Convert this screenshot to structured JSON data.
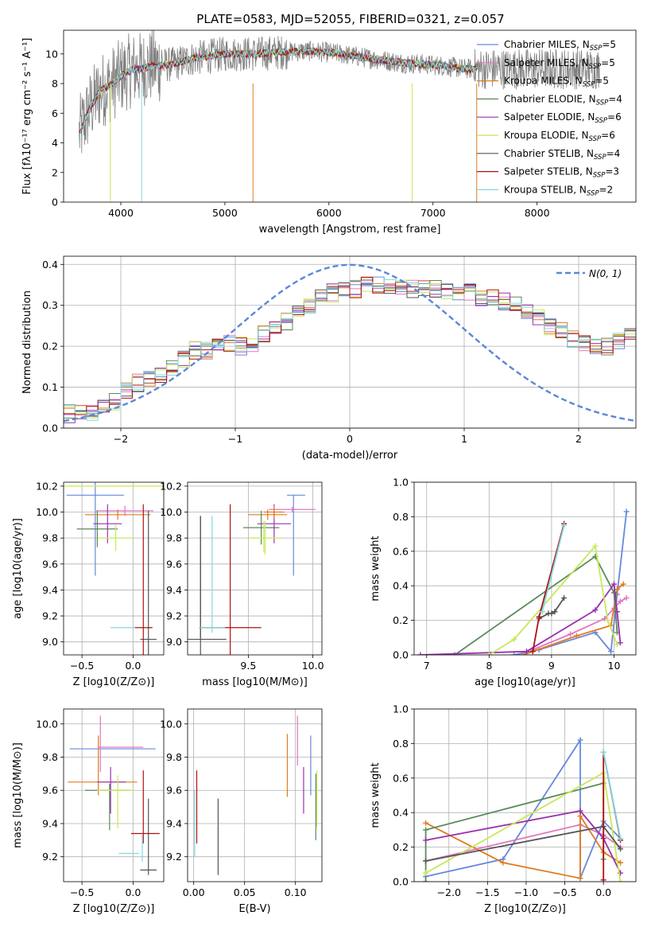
{
  "figure_title": "PLATE=0583, MJD=52055, FIBERID=0321, z=0.057",
  "colors": {
    "data": "#808080",
    "models": [
      "#6688dd",
      "#e377c2",
      "#e07b20",
      "#5a8a5a",
      "#9b30b0",
      "#c8e85a",
      "#555555",
      "#b01010",
      "#80d8e0"
    ],
    "gaussian": "#5b87d8"
  },
  "chart_data": [
    {
      "id": "spectrum",
      "type": "line",
      "xlabel": "wavelength [Angstrom, rest frame]",
      "ylabel": "Flux [fλ10⁻¹⁷ erg cm⁻² s⁻¹ A⁻¹]",
      "xlim": [
        3450,
        8950
      ],
      "ylim": [
        0,
        11.6
      ],
      "xticks": [
        4000,
        5000,
        6000,
        7000,
        8000
      ],
      "yticks": [
        0,
        2,
        4,
        6,
        8,
        10
      ],
      "grid": false,
      "legend_position": "top-right",
      "continuum": {
        "x": [
          3600,
          3700,
          3800,
          3900,
          4000,
          4100,
          4200,
          4300,
          4500,
          4700,
          5000,
          5300,
          5500,
          5800,
          6000,
          6300,
          6500,
          6700,
          6900,
          7100,
          7300,
          7420
        ],
        "y": [
          4.6,
          6.3,
          7.5,
          7.9,
          8.5,
          8.9,
          9.0,
          9.2,
          9.3,
          9.7,
          10.0,
          10.0,
          10.1,
          10.2,
          10.1,
          9.8,
          9.6,
          9.4,
          9.3,
          9.2,
          9.0,
          9.0
        ]
      },
      "series": [
        {
          "name": "Chabrier MILES, N_SSP=5"
        },
        {
          "name": "Salpeter MILES, N_SSP=5"
        },
        {
          "name": "Kroupa MILES, N_SSP=5"
        },
        {
          "name": "Chabrier ELODIE, N_SSP=4"
        },
        {
          "name": "Salpeter ELODIE, N_SSP=6"
        },
        {
          "name": "Kroupa ELODIE, N_SSP=6"
        },
        {
          "name": "Chabrier STELIB, N_SSP=4"
        },
        {
          "name": "Salpeter STELIB, N_SSP=3"
        },
        {
          "name": "Kroupa STELIB, N_SSP=2"
        }
      ],
      "legend_entries": [
        {
          "name": "Chabrier MILES, N",
          "sub": "SSP",
          "tail": "=5"
        },
        {
          "name": "Salpeter MILES, N",
          "sub": "SSP",
          "tail": "=5"
        },
        {
          "name": "Kroupa MILES, N",
          "sub": "SSP",
          "tail": "=5"
        },
        {
          "name": "Chabrier ELODIE, N",
          "sub": "SSP",
          "tail": "=4"
        },
        {
          "name": "Salpeter ELODIE, N",
          "sub": "SSP",
          "tail": "=6"
        },
        {
          "name": "Kroupa ELODIE, N",
          "sub": "SSP",
          "tail": "=6"
        },
        {
          "name": "Chabrier STELIB, N",
          "sub": "SSP",
          "tail": "=4"
        },
        {
          "name": "Salpeter STELIB, N",
          "sub": "SSP",
          "tail": "=3"
        },
        {
          "name": "Kroupa STELIB, N",
          "sub": "SSP",
          "tail": "=2"
        }
      ]
    },
    {
      "id": "residuals",
      "type": "histogram",
      "xlabel": "(data-model)/error",
      "ylabel": "Normed distribution",
      "xlim": [
        -2.5,
        2.5
      ],
      "ylim": [
        0,
        0.42
      ],
      "xticks": [
        -2,
        -1,
        0,
        1,
        2
      ],
      "yticks": [
        0.0,
        0.1,
        0.2,
        0.3,
        0.4
      ],
      "grid": true,
      "legend_position": "top-right",
      "legend_label": "N(0, 1)",
      "bin_width": 0.1,
      "bin_start": -2.5,
      "mean_distribution": [
        0.035,
        0.035,
        0.04,
        0.06,
        0.065,
        0.09,
        0.11,
        0.12,
        0.125,
        0.15,
        0.17,
        0.19,
        0.19,
        0.2,
        0.21,
        0.2,
        0.2,
        0.23,
        0.25,
        0.26,
        0.29,
        0.3,
        0.32,
        0.33,
        0.34,
        0.34,
        0.35,
        0.35,
        0.35,
        0.35,
        0.34,
        0.34,
        0.34,
        0.33,
        0.33,
        0.33,
        0.32,
        0.32,
        0.31,
        0.3,
        0.28,
        0.27,
        0.25,
        0.24,
        0.22,
        0.21,
        0.2,
        0.2,
        0.21,
        0.23,
        0.21,
        0.19,
        0.18,
        0.17,
        0.14,
        0.13,
        0.11,
        0.1,
        0.09,
        0.08,
        0.07,
        0.06,
        0.05,
        0.04,
        0.04,
        0.03
      ],
      "hist_names": [
        "Chabrier MILES",
        "Salpeter MILES",
        "Kroupa MILES",
        "Chabrier ELODIE",
        "Salpeter ELODIE",
        "Kroupa ELODIE",
        "Chabrier STELIB",
        "Salpeter STELIB",
        "Kroupa STELIB"
      ]
    },
    {
      "id": "age_vs_Z",
      "type": "errorbar",
      "xlabel": "Z [log10(Z/Z⊙)]",
      "ylabel": "age  [log10(age/yr)]",
      "xlim": [
        -0.68,
        0.3
      ],
      "ylim": [
        8.9,
        10.23
      ],
      "xticks": [
        -0.5,
        0.0
      ],
      "yticks": [
        9.0,
        9.2,
        9.4,
        9.6,
        9.8,
        10.0,
        10.2
      ],
      "grid": true,
      "points": [
        {
          "series": 0,
          "x": -0.37,
          "xerr": 0.28,
          "y": 10.13,
          "yerr": 0.62
        },
        {
          "series": 1,
          "x": -0.08,
          "xerr": 0.28,
          "y": 10.01,
          "yerr": 0.04
        },
        {
          "series": 2,
          "x": -0.15,
          "xerr": 0.32,
          "y": 9.98,
          "yerr": 0.04
        },
        {
          "series": 3,
          "x": -0.35,
          "xerr": 0.2,
          "y": 9.87,
          "yerr": 0.14
        },
        {
          "series": 4,
          "x": -0.25,
          "xerr": 0.14,
          "y": 9.91,
          "yerr": 0.15
        },
        {
          "series": 5,
          "x": -0.17,
          "xerr": 0.17,
          "y": 9.8,
          "yerr": 0.1
        },
        {
          "series": 6,
          "x": 0.15,
          "xerr": 0.08,
          "y": 9.02,
          "yerr": 0.99
        },
        {
          "series": 7,
          "x": 0.1,
          "xerr": 0.09,
          "y": 9.11,
          "yerr": 0.95
        },
        {
          "series": 8,
          "x": -0.1,
          "xerr": 0.12,
          "y": 9.11,
          "yerr": 0.0
        },
        {
          "series": 5,
          "x": -0.2,
          "xerr": 0.5,
          "y": 10.2,
          "yerr": 0.0
        }
      ]
    },
    {
      "id": "age_vs_mass",
      "type": "errorbar",
      "xlabel": "mass [log10(M/M⊙)]",
      "ylabel": "",
      "xlim": [
        9.03,
        10.07
      ],
      "ylim": [
        8.9,
        10.23
      ],
      "xticks": [
        9.5,
        10.0
      ],
      "yticks": [
        9.0,
        9.2,
        9.4,
        9.6,
        9.8,
        10.0,
        10.2
      ],
      "grid": true,
      "points": [
        {
          "series": 0,
          "x": 9.85,
          "xerr": 0.0,
          "y": 9.82,
          "yerr": 0.31
        },
        {
          "series": 0,
          "x": 9.87,
          "xerr": 0.07,
          "y": 10.13,
          "yerr": 0.0
        },
        {
          "series": 1,
          "x": 9.84,
          "xerr": 0.18,
          "y": 10.02,
          "yerr": 0.02
        },
        {
          "series": 2,
          "x": 9.65,
          "xerr": 0.15,
          "y": 9.98,
          "yerr": 0.04
        },
        {
          "series": 3,
          "x": 9.6,
          "xerr": 0.14,
          "y": 9.88,
          "yerr": 0.13
        },
        {
          "series": 4,
          "x": 9.7,
          "xerr": 0.13,
          "y": 9.91,
          "yerr": 0.15
        },
        {
          "series": 5,
          "x": 9.63,
          "xerr": 0.12,
          "y": 9.8,
          "yerr": 0.13
        },
        {
          "series": 6,
          "x": 9.13,
          "xerr": 0.2,
          "y": 9.02,
          "yerr": 0.95
        },
        {
          "series": 6,
          "x": 9.13,
          "xerr": 0.0,
          "y": 9.5,
          "yerr": 0.47
        },
        {
          "series": 7,
          "x": 9.36,
          "xerr": 0.24,
          "y": 9.11,
          "yerr": 0.95
        },
        {
          "series": 8,
          "x": 9.22,
          "xerr": 0.0,
          "y": 9.52,
          "yerr": 0.45
        },
        {
          "series": 8,
          "x": 9.22,
          "xerr": 0.1,
          "y": 9.11,
          "yerr": 0.0
        },
        {
          "series": 2,
          "x": 9.7,
          "xerr": 0.08,
          "y": 10.0,
          "yerr": 0.05
        },
        {
          "series": 5,
          "x": 9.62,
          "xerr": 0.0,
          "y": 9.81,
          "yerr": 0.12
        }
      ]
    },
    {
      "id": "massweight_vs_age",
      "type": "line",
      "xlabel": "age  [log10(age/yr)]",
      "ylabel": "mass weight",
      "xlim": [
        6.8,
        10.35
      ],
      "ylim": [
        0,
        1.0
      ],
      "xticks": [
        7,
        8,
        9,
        10
      ],
      "yticks": [
        0.0,
        0.2,
        0.4,
        0.6,
        0.8,
        1.0
      ],
      "grid": true,
      "series": [
        {
          "series": 0,
          "x": [
            8.4,
            8.8,
            9.7,
            9.95,
            10.05,
            10.2
          ],
          "y": [
            0.0,
            0.03,
            0.13,
            0.02,
            0.35,
            0.83
          ]
        },
        {
          "series": 1,
          "x": [
            8.7,
            9.3,
            9.85,
            10.0,
            10.1,
            10.2
          ],
          "y": [
            0.03,
            0.12,
            0.21,
            0.27,
            0.31,
            0.33
          ]
        },
        {
          "series": 2,
          "x": [
            8.55,
            9.4,
            9.95,
            10.05,
            10.15
          ],
          "y": [
            0.0,
            0.11,
            0.17,
            0.38,
            0.41
          ]
        },
        {
          "series": 3,
          "x": [
            7.45,
            9.7,
            10.0,
            10.05
          ],
          "y": [
            0.0,
            0.57,
            0.36,
            0.13
          ]
        },
        {
          "series": 4,
          "x": [
            6.9,
            8.6,
            9.7,
            10.0,
            10.05,
            10.1
          ],
          "y": [
            0.0,
            0.02,
            0.26,
            0.41,
            0.25,
            0.07
          ]
        },
        {
          "series": 5,
          "x": [
            8.0,
            8.4,
            9.7,
            9.9,
            10.05
          ],
          "y": [
            0.0,
            0.09,
            0.63,
            0.2,
            0.06
          ]
        },
        {
          "series": 6,
          "x": [
            8.8,
            8.95,
            9.0,
            9.05,
            9.2
          ],
          "y": [
            0.21,
            0.24,
            0.24,
            0.25,
            0.33
          ]
        },
        {
          "series": 7,
          "x": [
            8.7,
            8.8,
            9.2
          ],
          "y": [
            0.02,
            0.22,
            0.76
          ]
        },
        {
          "series": 8,
          "x": [
            8.85,
            9.2
          ],
          "y": [
            0.25,
            0.75
          ]
        }
      ]
    },
    {
      "id": "mass_vs_Z",
      "type": "errorbar",
      "xlabel": "Z [log10(Z/Z⊙)]",
      "ylabel": "mass [log10(M/M⊙)]",
      "xlim": [
        -0.68,
        0.3
      ],
      "ylim": [
        9.05,
        10.09
      ],
      "xticks": [
        -0.5,
        0.0
      ],
      "yticks": [
        9.2,
        9.4,
        9.6,
        9.8,
        10.0
      ],
      "grid": true,
      "points": [
        {
          "series": 0,
          "x": -0.2,
          "xerr": 0.42,
          "y": 9.85,
          "yerr": 0.0
        },
        {
          "series": 1,
          "x": -0.12,
          "xerr": 0.22,
          "y": 9.86,
          "yerr": 0.0
        },
        {
          "series": 1,
          "x": -0.32,
          "xerr": 0.0,
          "y": 9.88,
          "yerr": 0.17
        },
        {
          "series": 2,
          "x": -0.3,
          "xerr": 0.34,
          "y": 9.65,
          "yerr": 0.0
        },
        {
          "series": 2,
          "x": -0.34,
          "xerr": 0.0,
          "y": 9.75,
          "yerr": 0.18
        },
        {
          "series": 3,
          "x": -0.25,
          "xerr": 0.22,
          "y": 9.6,
          "yerr": 0.0
        },
        {
          "series": 3,
          "x": -0.23,
          "xerr": 0.0,
          "y": 9.5,
          "yerr": 0.14
        },
        {
          "series": 4,
          "x": -0.21,
          "xerr": 0.14,
          "y": 9.65,
          "yerr": 0.0
        },
        {
          "series": 4,
          "x": -0.22,
          "xerr": 0.0,
          "y": 9.6,
          "yerr": 0.14
        },
        {
          "series": 5,
          "x": -0.17,
          "xerr": 0.18,
          "y": 9.6,
          "yerr": 0.0
        },
        {
          "series": 5,
          "x": -0.15,
          "xerr": 0.0,
          "y": 9.53,
          "yerr": 0.16
        },
        {
          "series": 6,
          "x": 0.15,
          "xerr": 0.08,
          "y": 9.12,
          "yerr": 0.0
        },
        {
          "series": 6,
          "x": 0.15,
          "xerr": 0.0,
          "y": 9.32,
          "yerr": 0.23
        },
        {
          "series": 7,
          "x": 0.12,
          "xerr": 0.14,
          "y": 9.34,
          "yerr": 0.0
        },
        {
          "series": 7,
          "x": 0.1,
          "xerr": 0.0,
          "y": 9.5,
          "yerr": 0.22
        },
        {
          "series": 8,
          "x": -0.04,
          "xerr": 0.1,
          "y": 9.22,
          "yerr": 0.0
        },
        {
          "series": 8,
          "x": 0.09,
          "xerr": 0.0,
          "y": 9.25,
          "yerr": 0.08
        }
      ]
    },
    {
      "id": "mass_vs_EBV",
      "type": "errorbar",
      "xlabel": "E(B-V)",
      "ylabel": "",
      "xlim": [
        -0.006,
        0.126
      ],
      "ylim": [
        9.05,
        10.09
      ],
      "xticks": [
        0.0,
        0.05,
        0.1
      ],
      "yticks": [
        9.2,
        9.4,
        9.6,
        9.8,
        10.0
      ],
      "grid": true,
      "points": [
        {
          "series": 0,
          "x": 0.115,
          "xerr": 0.0,
          "y": 9.75,
          "yerr": 0.18
        },
        {
          "series": 1,
          "x": 0.102,
          "xerr": 0.0,
          "y": 9.9,
          "yerr": 0.15
        },
        {
          "series": 2,
          "x": 0.092,
          "xerr": 0.0,
          "y": 9.75,
          "yerr": 0.19
        },
        {
          "series": 3,
          "x": 0.12,
          "xerr": 0.0,
          "y": 9.5,
          "yerr": 0.2
        },
        {
          "series": 4,
          "x": 0.108,
          "xerr": 0.0,
          "y": 9.6,
          "yerr": 0.14
        },
        {
          "series": 5,
          "x": 0.121,
          "xerr": 0.0,
          "y": 9.55,
          "yerr": 0.17
        },
        {
          "series": 6,
          "x": 0.024,
          "xerr": 0.0,
          "y": 9.32,
          "yerr": 0.23
        },
        {
          "series": 7,
          "x": 0.003,
          "xerr": 0.0,
          "y": 9.5,
          "yerr": 0.22
        },
        {
          "series": 8,
          "x": 0.001,
          "xerr": 0.0,
          "y": 9.4,
          "yerr": 0.2
        }
      ]
    },
    {
      "id": "massweight_vs_Z",
      "type": "line",
      "xlabel": "Z [log10(Z/Z⊙)]",
      "ylabel": "mass weight",
      "xlim": [
        -2.45,
        0.42
      ],
      "ylim": [
        0,
        1.0
      ],
      "xticks": [
        -2.0,
        -1.5,
        -1.0,
        -0.5,
        0.0
      ],
      "yticks": [
        0.0,
        0.2,
        0.4,
        0.6,
        0.8,
        1.0
      ],
      "grid": true,
      "series": [
        {
          "series": 0,
          "x": [
            -2.3,
            -1.3,
            -0.3,
            -0.3,
            0.0,
            0.22
          ],
          "y": [
            0.03,
            0.13,
            0.82,
            0.02,
            0.35,
            0.25
          ]
        },
        {
          "series": 1,
          "x": [
            -2.3,
            -0.3,
            0.0,
            0.22
          ],
          "y": [
            0.12,
            0.33,
            0.27,
            0.2
          ]
        },
        {
          "series": 2,
          "x": [
            -2.3,
            -1.3,
            -0.3,
            -0.3,
            0.0,
            0.22
          ],
          "y": [
            0.34,
            0.11,
            0.02,
            0.38,
            0.17,
            0.11
          ]
        },
        {
          "series": 3,
          "x": [
            -2.3,
            -2.3,
            0.0,
            0.0
          ],
          "y": [
            0.0,
            0.3,
            0.57,
            0.13
          ]
        },
        {
          "series": 4,
          "x": [
            -2.3,
            -0.3,
            0.0,
            0.22
          ],
          "y": [
            0.24,
            0.41,
            0.25,
            0.05
          ]
        },
        {
          "series": 5,
          "x": [
            -2.3,
            0.0,
            0.22
          ],
          "y": [
            0.05,
            0.63,
            0.0
          ]
        },
        {
          "series": 6,
          "x": [
            -2.3,
            0.0,
            0.22
          ],
          "y": [
            0.12,
            0.32,
            0.19
          ]
        },
        {
          "series": 7,
          "x": [
            0.0,
            0.0,
            0.22
          ],
          "y": [
            0.01,
            0.75,
            0.24
          ]
        },
        {
          "series": 8,
          "x": [
            0.0,
            0.22
          ],
          "y": [
            0.75,
            0.25
          ]
        }
      ]
    }
  ]
}
